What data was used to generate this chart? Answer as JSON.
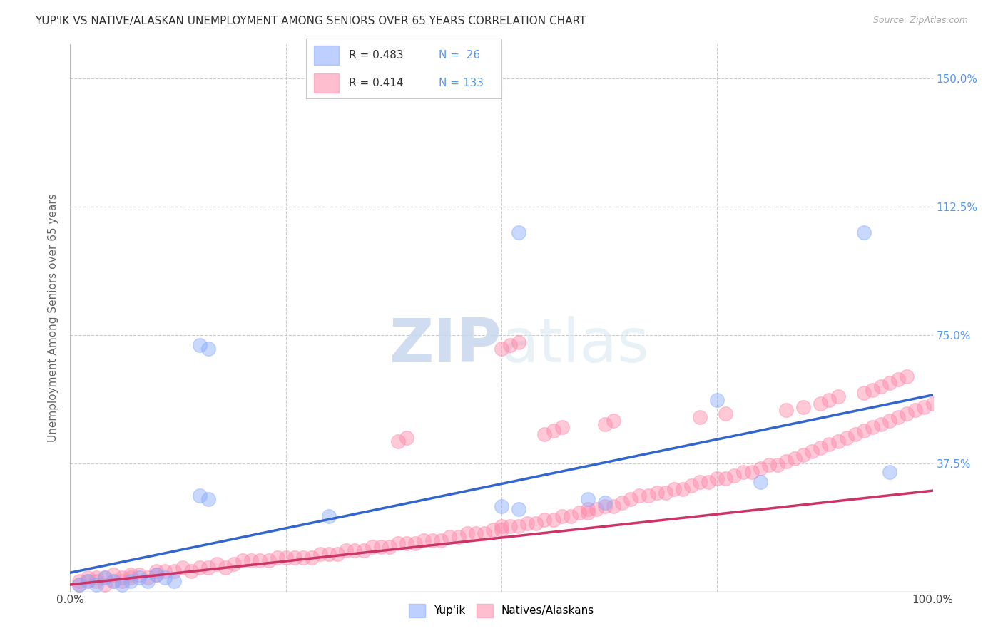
{
  "title": "YUP'IK VS NATIVE/ALASKAN UNEMPLOYMENT AMONG SENIORS OVER 65 YEARS CORRELATION CHART",
  "source": "Source: ZipAtlas.com",
  "ylabel": "Unemployment Among Seniors over 65 years",
  "xlim": [
    0.0,
    1.0
  ],
  "ylim": [
    0.0,
    1.6
  ],
  "xticks": [
    0.0,
    0.25,
    0.5,
    0.75,
    1.0
  ],
  "xtick_labels": [
    "0.0%",
    "",
    "",
    "",
    "100.0%"
  ],
  "yticks": [
    0.0,
    0.375,
    0.75,
    1.125,
    1.5
  ],
  "ytick_labels": [
    "",
    "37.5%",
    "75.0%",
    "112.5%",
    "150.0%"
  ],
  "background_color": "#ffffff",
  "grid_color": "#cccccc",
  "watermark_zip": "ZIP",
  "watermark_atlas": "atlas",
  "legend_R1": "R = 0.483",
  "legend_N1": "N =  26",
  "legend_R2": "R = 0.414",
  "legend_N2": "N = 133",
  "color_yupik": "#88aaff",
  "color_native": "#ff88aa",
  "line_color_yupik": "#3366cc",
  "line_color_native": "#cc3366",
  "yupik_x": [
    0.01,
    0.02,
    0.03,
    0.04,
    0.05,
    0.06,
    0.07,
    0.08,
    0.09,
    0.1,
    0.11,
    0.12,
    0.15,
    0.16,
    0.15,
    0.16,
    0.3,
    0.52,
    0.5,
    0.52,
    0.6,
    0.62,
    0.75,
    0.8,
    0.92,
    0.95
  ],
  "yupik_y": [
    0.02,
    0.03,
    0.02,
    0.04,
    0.03,
    0.02,
    0.03,
    0.04,
    0.03,
    0.05,
    0.04,
    0.03,
    0.28,
    0.27,
    0.72,
    0.71,
    0.22,
    1.05,
    0.25,
    0.24,
    0.27,
    0.26,
    0.56,
    0.32,
    1.05,
    0.35
  ],
  "native_x": [
    0.01,
    0.01,
    0.02,
    0.02,
    0.03,
    0.03,
    0.04,
    0.04,
    0.05,
    0.05,
    0.06,
    0.06,
    0.07,
    0.07,
    0.08,
    0.09,
    0.1,
    0.1,
    0.11,
    0.12,
    0.13,
    0.14,
    0.15,
    0.16,
    0.17,
    0.18,
    0.19,
    0.2,
    0.21,
    0.22,
    0.23,
    0.24,
    0.25,
    0.26,
    0.27,
    0.28,
    0.29,
    0.3,
    0.31,
    0.32,
    0.33,
    0.34,
    0.35,
    0.36,
    0.37,
    0.38,
    0.39,
    0.4,
    0.41,
    0.42,
    0.43,
    0.44,
    0.45,
    0.46,
    0.47,
    0.48,
    0.49,
    0.5,
    0.5,
    0.51,
    0.52,
    0.53,
    0.54,
    0.55,
    0.56,
    0.57,
    0.58,
    0.59,
    0.6,
    0.6,
    0.61,
    0.62,
    0.63,
    0.64,
    0.65,
    0.66,
    0.67,
    0.68,
    0.69,
    0.7,
    0.71,
    0.72,
    0.73,
    0.74,
    0.75,
    0.76,
    0.77,
    0.78,
    0.79,
    0.8,
    0.81,
    0.82,
    0.83,
    0.84,
    0.85,
    0.86,
    0.87,
    0.88,
    0.89,
    0.9,
    0.91,
    0.92,
    0.93,
    0.94,
    0.95,
    0.96,
    0.97,
    0.98,
    0.99,
    1.0,
    0.38,
    0.39,
    0.5,
    0.51,
    0.52,
    0.55,
    0.56,
    0.57,
    0.62,
    0.63,
    0.73,
    0.76,
    0.83,
    0.85,
    0.87,
    0.88,
    0.89,
    0.92,
    0.93,
    0.94,
    0.95,
    0.96,
    0.97
  ],
  "native_y": [
    0.02,
    0.03,
    0.03,
    0.04,
    0.03,
    0.04,
    0.02,
    0.04,
    0.03,
    0.05,
    0.04,
    0.03,
    0.05,
    0.04,
    0.05,
    0.04,
    0.05,
    0.06,
    0.06,
    0.06,
    0.07,
    0.06,
    0.07,
    0.07,
    0.08,
    0.07,
    0.08,
    0.09,
    0.09,
    0.09,
    0.09,
    0.1,
    0.1,
    0.1,
    0.1,
    0.1,
    0.11,
    0.11,
    0.11,
    0.12,
    0.12,
    0.12,
    0.13,
    0.13,
    0.13,
    0.14,
    0.14,
    0.14,
    0.15,
    0.15,
    0.15,
    0.16,
    0.16,
    0.17,
    0.17,
    0.17,
    0.18,
    0.18,
    0.19,
    0.19,
    0.19,
    0.2,
    0.2,
    0.21,
    0.21,
    0.22,
    0.22,
    0.23,
    0.23,
    0.24,
    0.24,
    0.25,
    0.25,
    0.26,
    0.27,
    0.28,
    0.28,
    0.29,
    0.29,
    0.3,
    0.3,
    0.31,
    0.32,
    0.32,
    0.33,
    0.33,
    0.34,
    0.35,
    0.35,
    0.36,
    0.37,
    0.37,
    0.38,
    0.39,
    0.4,
    0.41,
    0.42,
    0.43,
    0.44,
    0.45,
    0.46,
    0.47,
    0.48,
    0.49,
    0.5,
    0.51,
    0.52,
    0.53,
    0.54,
    0.55,
    0.44,
    0.45,
    0.71,
    0.72,
    0.73,
    0.46,
    0.47,
    0.48,
    0.49,
    0.5,
    0.51,
    0.52,
    0.53,
    0.54,
    0.55,
    0.56,
    0.57,
    0.58,
    0.59,
    0.6,
    0.61,
    0.62,
    0.63
  ],
  "yupik_line_x0": 0.0,
  "yupik_line_y0": 0.055,
  "yupik_line_x1": 1.0,
  "yupik_line_y1": 0.575,
  "native_line_x0": 0.0,
  "native_line_y0": 0.02,
  "native_line_x1": 1.0,
  "native_line_y1": 0.295
}
